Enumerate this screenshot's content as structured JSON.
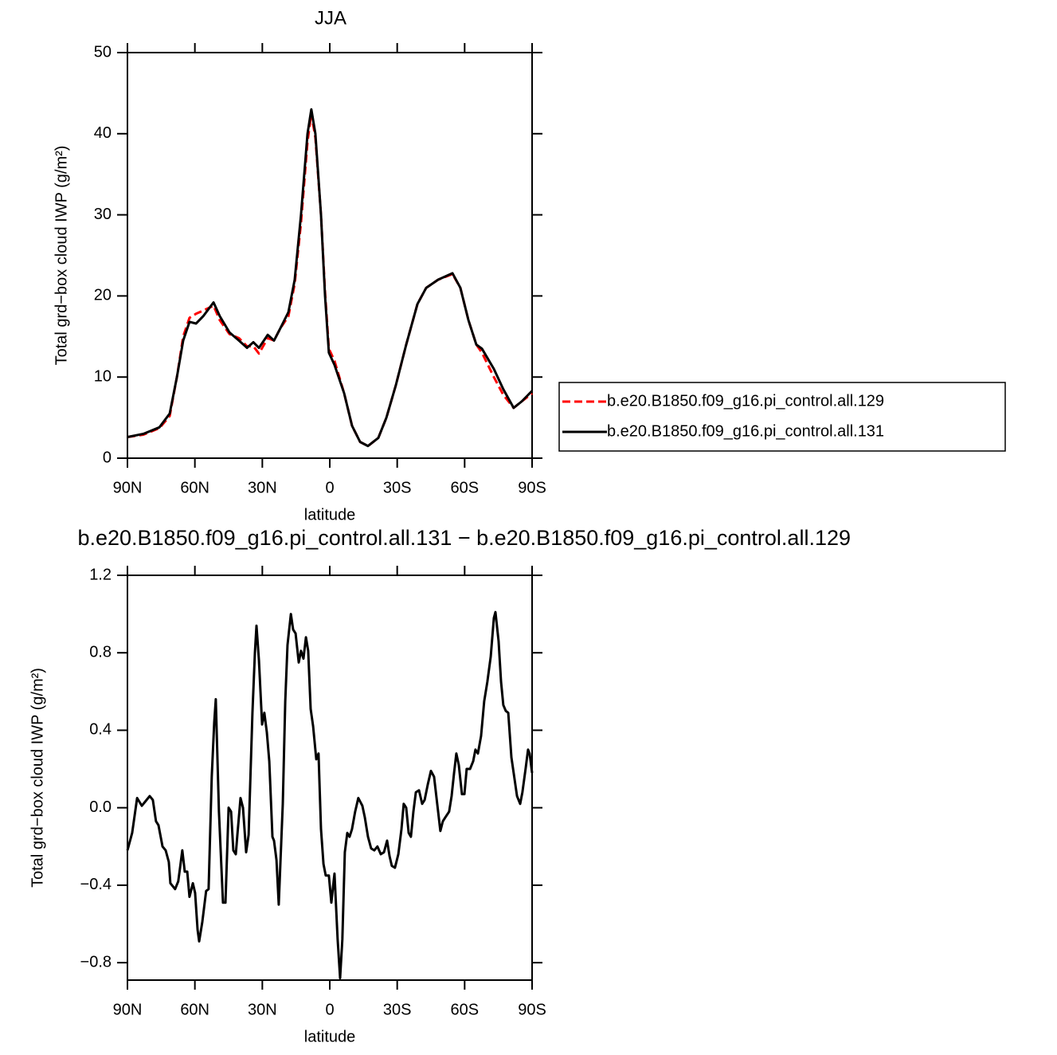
{
  "chart_data": [
    {
      "type": "line",
      "title": "JJA",
      "x_label": "latitude",
      "y_label": "Total grd−box cloud IWP (g/m²)",
      "x": [
        90,
        82.9,
        75.8,
        71.2,
        68,
        65.2,
        62.4,
        59.5,
        56.3,
        51.7,
        48.9,
        44.6,
        40.4,
        36.8,
        34,
        31.5,
        27.6,
        24.8,
        22,
        18.4,
        15.6,
        12.8,
        9.9,
        8.2,
        6.4,
        3.9,
        2.1,
        0.4,
        -2.1,
        -6.4,
        -9.9,
        -13.5,
        -17,
        -21.6,
        -25.2,
        -29.4,
        -34,
        -39,
        -42.9,
        -48.2,
        -54.6,
        -58.1,
        -61.7,
        -65.2,
        -67.7,
        -73,
        -77.2,
        -81.8,
        -85.4,
        -90
      ],
      "series": [
        {
          "name": "b.e20.B1850.f09_g16.pi_control.all.129",
          "color": "#ff0000",
          "dash": true,
          "values": [
            2.6,
            2.9,
            3.7,
            5.2,
            10,
            15,
            17.3,
            17.8,
            18.2,
            18.8,
            17,
            15.3,
            14.8,
            13.8,
            13.8,
            12.9,
            14.8,
            14.5,
            16,
            17.5,
            21.5,
            29,
            39,
            42.5,
            39.5,
            30,
            20.5,
            13.5,
            12,
            8,
            4,
            2,
            1.5,
            2.5,
            5,
            9,
            14,
            19,
            21,
            22,
            22.7,
            21,
            17,
            14,
            13,
            10,
            7.8,
            6.2,
            7,
            8
          ]
        },
        {
          "name": "b.e20.B1850.f09_g16.pi_control.all.131",
          "color": "#000000",
          "dash": false,
          "values": [
            2.6,
            3.0,
            3.8,
            5.5,
            10,
            14.5,
            16.8,
            16.6,
            17.5,
            19.2,
            17.5,
            15.5,
            14.5,
            13.6,
            14.3,
            13.6,
            15.2,
            14.5,
            16,
            18,
            22,
            30,
            40,
            43,
            40,
            30,
            20,
            13,
            11.5,
            8,
            4,
            2,
            1.5,
            2.5,
            5,
            9,
            14,
            19,
            21,
            22,
            22.8,
            21,
            17,
            14,
            13.5,
            11,
            8.5,
            6.2,
            7,
            8.3
          ]
        }
      ],
      "xlim": [
        90,
        -90
      ],
      "xticks": [
        {
          "value": 90,
          "label": "90N"
        },
        {
          "value": 60,
          "label": "60N"
        },
        {
          "value": 30,
          "label": "30N"
        },
        0,
        {
          "value": -30,
          "label": "30S"
        },
        {
          "value": -60,
          "label": "60S"
        },
        {
          "value": -90,
          "label": "90S"
        }
      ],
      "ylim": [
        0,
        50
      ],
      "yticks": [
        0,
        10,
        20,
        30,
        40,
        50
      ],
      "legend": "right"
    },
    {
      "type": "line",
      "title": "b.e20.B1850.f09_g16.pi_control.all.131 − b.e20.B1850.f09_g16.pi_control.all.129",
      "x_label": "latitude",
      "y_label": "Total grd−box cloud IWP (g/m²)",
      "x": [
        90.0,
        87.9,
        85.7,
        83.6,
        82.2,
        80.1,
        78.7,
        77.3,
        76.2,
        74.4,
        73.0,
        71.6,
        70.9,
        68.8,
        67.4,
        66.6,
        65.6,
        64.5,
        63.4,
        62.4,
        60.9,
        59.9,
        58.8,
        58.1,
        56.7,
        55.0,
        53.9,
        52.5,
        51.4,
        50.7,
        49.3,
        47.5,
        46.4,
        45.0,
        43.9,
        42.9,
        41.8,
        41.1,
        39.7,
        38.6,
        37.2,
        36.1,
        34.4,
        33.3,
        32.6,
        31.5,
        30.1,
        29.1,
        28.0,
        26.9,
        25.5,
        24.8,
        23.7,
        22.7,
        20.9,
        19.8,
        18.8,
        17.3,
        16.3,
        15.2,
        13.8,
        12.8,
        11.7,
        10.6,
        9.6,
        8.5,
        7.4,
        6.0,
        5.0,
        3.9,
        2.8,
        1.8,
        0.4,
        -0.7,
        -2.1,
        -3.5,
        -4.6,
        -5.6,
        -6.7,
        -7.8,
        -8.8,
        -9.9,
        -11.3,
        -12.7,
        -14.5,
        -15.6,
        -17.0,
        -18.4,
        -19.8,
        -21.2,
        -22.7,
        -24.1,
        -25.5,
        -26.6,
        -27.6,
        -29.0,
        -30.5,
        -31.9,
        -32.9,
        -34.0,
        -35.1,
        -36.1,
        -37.2,
        -38.3,
        -39.7,
        -41.1,
        -42.2,
        -43.6,
        -45.0,
        -46.4,
        -47.8,
        -49.2,
        -50.3,
        -51.4,
        -53.1,
        -54.2,
        -55.3,
        -56.3,
        -57.4,
        -58.8,
        -59.9,
        -60.9,
        -62.4,
        -63.8,
        -64.8,
        -65.9,
        -67.3,
        -68.7,
        -70.1,
        -71.6,
        -73.0,
        -73.7,
        -75.1,
        -76.2,
        -77.2,
        -78.3,
        -79.4,
        -80.8,
        -81.8,
        -83.3,
        -84.7,
        -85.7,
        -87.1,
        -88.2,
        -88.9,
        -90.0
      ],
      "series": [
        {
          "name": null,
          "color": "#000000",
          "dash": false,
          "values": [
            -0.22,
            -0.13,
            0.05,
            0.01,
            0.03,
            0.06,
            0.04,
            -0.07,
            -0.09,
            -0.2,
            -0.22,
            -0.28,
            -0.39,
            -0.42,
            -0.38,
            -0.31,
            -0.22,
            -0.33,
            -0.33,
            -0.46,
            -0.39,
            -0.44,
            -0.63,
            -0.69,
            -0.59,
            -0.43,
            -0.42,
            0.16,
            0.44,
            0.56,
            -0.02,
            -0.49,
            -0.49,
            0.0,
            -0.02,
            -0.22,
            -0.24,
            -0.14,
            0.05,
            0.0,
            -0.23,
            -0.14,
            0.49,
            0.8,
            0.94,
            0.76,
            0.43,
            0.49,
            0.39,
            0.24,
            -0.15,
            -0.17,
            -0.27,
            -0.5,
            0.02,
            0.55,
            0.84,
            1.0,
            0.92,
            0.9,
            0.75,
            0.81,
            0.77,
            0.88,
            0.81,
            0.51,
            0.42,
            0.25,
            0.28,
            -0.11,
            -0.29,
            -0.35,
            -0.35,
            -0.49,
            -0.34,
            -0.68,
            -0.88,
            -0.68,
            -0.23,
            -0.13,
            -0.15,
            -0.11,
            -0.02,
            0.05,
            0.01,
            -0.05,
            -0.15,
            -0.21,
            -0.22,
            -0.2,
            -0.24,
            -0.23,
            -0.17,
            -0.25,
            -0.3,
            -0.31,
            -0.24,
            -0.11,
            0.02,
            0.0,
            -0.13,
            -0.15,
            -0.02,
            0.08,
            0.09,
            0.02,
            0.04,
            0.12,
            0.19,
            0.16,
            0.02,
            -0.12,
            -0.07,
            -0.05,
            -0.02,
            0.06,
            0.18,
            0.28,
            0.22,
            0.07,
            0.07,
            0.2,
            0.2,
            0.24,
            0.3,
            0.28,
            0.37,
            0.55,
            0.65,
            0.78,
            0.98,
            1.01,
            0.86,
            0.65,
            0.53,
            0.5,
            0.49,
            0.26,
            0.18,
            0.06,
            0.02,
            0.08,
            0.2,
            0.3,
            0.28,
            0.18
          ]
        }
      ],
      "xlim": [
        90,
        -90
      ],
      "xticks": [
        {
          "value": 90,
          "label": "90N"
        },
        {
          "value": 60,
          "label": "60N"
        },
        {
          "value": 30,
          "label": "30N"
        },
        0,
        {
          "value": -30,
          "label": "30S"
        },
        {
          "value": -60,
          "label": "60S"
        },
        {
          "value": -90,
          "label": "90S"
        }
      ],
      "ylim": [
        -0.89,
        1.2
      ],
      "yticks": [
        {
          "value": -0.8,
          "label": "−0.8"
        },
        {
          "value": -0.4,
          "label": "−0.4"
        },
        {
          "value": 0,
          "label": "0.0"
        },
        0.4,
        0.8,
        1.2
      ]
    }
  ]
}
